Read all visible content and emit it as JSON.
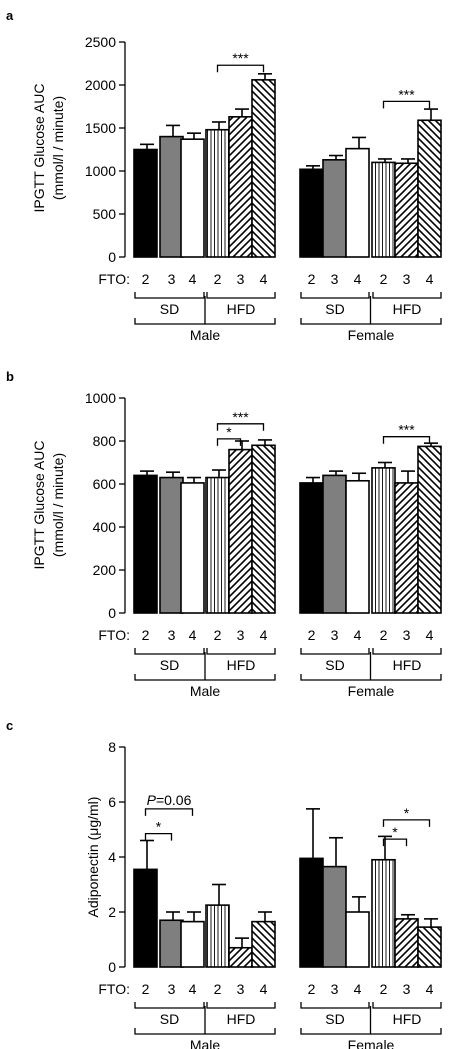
{
  "chart_data": [
    {
      "type": "bar",
      "panel_label": "a",
      "ylabel_line1": "IPGTT Glucose AUC",
      "ylabel_line2": "(mmol/l / minute)",
      "ylim": [
        0,
        2500
      ],
      "yticks": [
        0,
        500,
        1000,
        1500,
        2000,
        2500
      ],
      "fto_label": "FTO:",
      "diet_labels": [
        "SD",
        "HFD"
      ],
      "sex_labels": [
        "Male",
        "Female"
      ],
      "groups": [
        {
          "sex": "Male",
          "diet": "SD",
          "fto": [
            "2",
            "3",
            "4"
          ],
          "values": [
            1250,
            1400,
            1370
          ],
          "errors": [
            60,
            130,
            70
          ]
        },
        {
          "sex": "Male",
          "diet": "HFD",
          "fto": [
            "2",
            "3",
            "4"
          ],
          "values": [
            1480,
            1630,
            2060
          ],
          "errors": [
            90,
            90,
            70
          ]
        },
        {
          "sex": "Female",
          "diet": "SD",
          "fto": [
            "2",
            "3",
            "4"
          ],
          "values": [
            1020,
            1130,
            1260
          ],
          "errors": [
            40,
            50,
            130
          ]
        },
        {
          "sex": "Female",
          "diet": "HFD",
          "fto": [
            "2",
            "3",
            "4"
          ],
          "values": [
            1100,
            1090,
            1590
          ],
          "errors": [
            40,
            50,
            130
          ]
        }
      ],
      "significance": [
        {
          "group": 1,
          "from": 0,
          "to": 2,
          "label": "***",
          "y": 2230
        },
        {
          "group": 3,
          "from": 0,
          "to": 2,
          "label": "***",
          "y": 1810
        }
      ]
    },
    {
      "type": "bar",
      "panel_label": "b",
      "ylabel_line1": "IPGTT Glucose AUC",
      "ylabel_line2": "(mmol/l / minute)",
      "ylim": [
        0,
        1000
      ],
      "yticks": [
        0,
        200,
        400,
        600,
        800,
        1000
      ],
      "fto_label": "FTO:",
      "diet_labels": [
        "SD",
        "HFD"
      ],
      "sex_labels": [
        "Male",
        "Female"
      ],
      "groups": [
        {
          "sex": "Male",
          "diet": "SD",
          "fto": [
            "2",
            "3",
            "4"
          ],
          "values": [
            640,
            630,
            605
          ],
          "errors": [
            20,
            25,
            25
          ]
        },
        {
          "sex": "Male",
          "diet": "HFD",
          "fto": [
            "2",
            "3",
            "4"
          ],
          "values": [
            630,
            760,
            780
          ],
          "errors": [
            35,
            40,
            25
          ]
        },
        {
          "sex": "Female",
          "diet": "SD",
          "fto": [
            "2",
            "3",
            "4"
          ],
          "values": [
            605,
            640,
            615
          ],
          "errors": [
            25,
            20,
            35
          ]
        },
        {
          "sex": "Female",
          "diet": "HFD",
          "fto": [
            "2",
            "3",
            "4"
          ],
          "values": [
            675,
            605,
            775
          ],
          "errors": [
            25,
            55,
            15
          ]
        }
      ],
      "significance": [
        {
          "group": 1,
          "from": 0,
          "to": 1,
          "label": "*",
          "y": 810
        },
        {
          "group": 1,
          "from": 0,
          "to": 2,
          "label": "***",
          "y": 880
        },
        {
          "group": 3,
          "from": 0,
          "to": 2,
          "label": "***",
          "y": 820
        }
      ]
    },
    {
      "type": "bar",
      "panel_label": "c",
      "ylabel_line1": "Adiponectin (μg/ml)",
      "ylabel_line2": "",
      "ylim": [
        0,
        8
      ],
      "yticks": [
        0,
        2,
        4,
        6,
        8
      ],
      "fto_label": "FTO:",
      "diet_labels": [
        "SD",
        "HFD"
      ],
      "sex_labels": [
        "Male",
        "Female"
      ],
      "groups": [
        {
          "sex": "Male",
          "diet": "SD",
          "fto": [
            "2",
            "3",
            "4"
          ],
          "values": [
            3.55,
            1.7,
            1.65
          ],
          "errors": [
            1.05,
            0.3,
            0.35
          ]
        },
        {
          "sex": "Male",
          "diet": "HFD",
          "fto": [
            "2",
            "3",
            "4"
          ],
          "values": [
            2.25,
            0.7,
            1.65
          ],
          "errors": [
            0.75,
            0.35,
            0.35
          ]
        },
        {
          "sex": "Female",
          "diet": "SD",
          "fto": [
            "2",
            "3",
            "4"
          ],
          "values": [
            3.95,
            3.65,
            2.0
          ],
          "errors": [
            1.8,
            1.05,
            0.55
          ]
        },
        {
          "sex": "Female",
          "diet": "HFD",
          "fto": [
            "2",
            "3",
            "4"
          ],
          "values": [
            3.9,
            1.75,
            1.45
          ],
          "errors": [
            0.85,
            0.15,
            0.3
          ]
        }
      ],
      "significance": [
        {
          "group": 0,
          "from": 0,
          "to": 1,
          "label": "*",
          "y": 4.85
        },
        {
          "group": 0,
          "from": 0,
          "to": 2,
          "label": "P=0.06",
          "italic_prefix": "P",
          "y": 5.75
        },
        {
          "group": 3,
          "from": 0,
          "to": 1,
          "label": "*",
          "y": 4.65
        },
        {
          "group": 3,
          "from": 0,
          "to": 2,
          "label": "*",
          "y": 5.35
        }
      ]
    }
  ]
}
